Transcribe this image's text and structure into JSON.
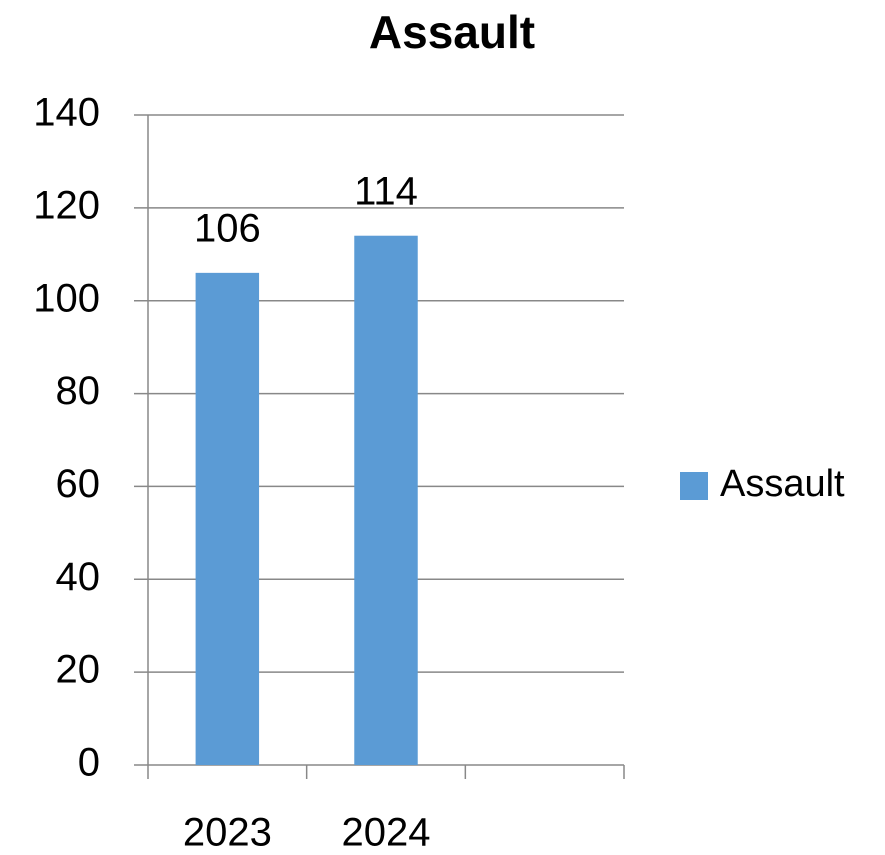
{
  "chart_data": {
    "type": "bar",
    "title": "Assault",
    "categories": [
      "2023",
      "2024",
      null
    ],
    "series": [
      {
        "name": "Assault",
        "color": "#5b9bd5",
        "values": [
          106,
          114,
          null
        ]
      }
    ],
    "ylim": [
      0,
      140
    ],
    "yticks": [
      0,
      20,
      40,
      60,
      80,
      100,
      120,
      140
    ],
    "grid": true,
    "legend": "right"
  }
}
